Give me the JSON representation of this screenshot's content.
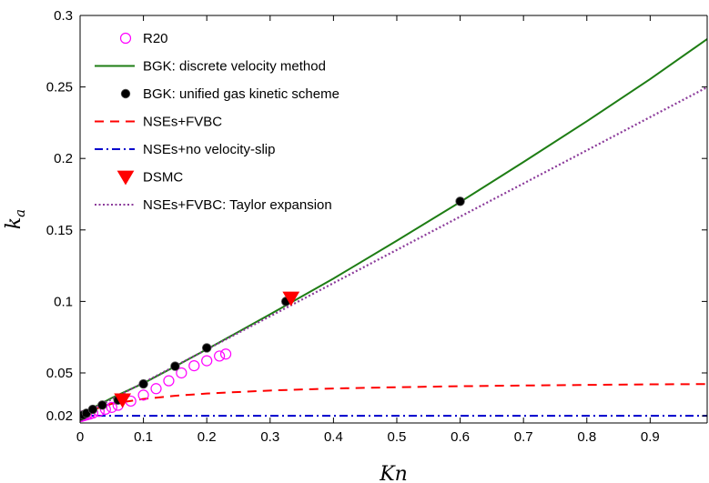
{
  "chart_data": {
    "type": "line",
    "title": "",
    "xlabel": "Kn",
    "ylabel": "k_a",
    "ylabel_main": "k",
    "ylabel_sub": "a",
    "xlim": [
      0,
      0.99
    ],
    "ylim": [
      0.015,
      0.3
    ],
    "xticks": [
      "0",
      "0.1",
      "0.2",
      "0.3",
      "0.4",
      "0.5",
      "0.6",
      "0.7",
      "0.8",
      "0.9"
    ],
    "xtick_values": [
      0,
      0.1,
      0.2,
      0.3,
      0.4,
      0.5,
      0.6,
      0.7,
      0.8,
      0.9
    ],
    "yticks": [
      "0.02",
      "0.05",
      "0.1",
      "0.15",
      "0.2",
      "0.25",
      "0.3"
    ],
    "ytick_values": [
      0.02,
      0.05,
      0.1,
      0.15,
      0.2,
      0.25,
      0.3
    ],
    "grid": false,
    "legend_position": "top-left",
    "series": [
      {
        "name": "R20",
        "style": "circle-open",
        "color": "#ff00ff",
        "x": [
          0.001,
          0.003,
          0.006,
          0.01,
          0.015,
          0.02,
          0.03,
          0.04,
          0.05,
          0.06,
          0.08,
          0.1,
          0.12,
          0.14,
          0.16,
          0.18,
          0.2,
          0.22,
          0.23
        ],
        "y": [
          0.0195,
          0.0198,
          0.0201,
          0.0206,
          0.0212,
          0.0219,
          0.0232,
          0.0246,
          0.0259,
          0.0274,
          0.0303,
          0.0345,
          0.039,
          0.0445,
          0.05,
          0.055,
          0.0585,
          0.0618,
          0.0632
        ]
      },
      {
        "name": "BGK: discrete velocity method",
        "style": "solid",
        "color": "#1e7d14",
        "x": [
          0,
          0.02,
          0.05,
          0.1,
          0.15,
          0.2,
          0.3,
          0.33,
          0.4,
          0.5,
          0.6,
          0.7,
          0.8,
          0.9,
          0.99
        ],
        "y": [
          0.02,
          0.0255,
          0.0325,
          0.0428,
          0.0545,
          0.0665,
          0.091,
          0.0985,
          0.116,
          0.1425,
          0.1695,
          0.1975,
          0.226,
          0.2555,
          0.2835
        ]
      },
      {
        "name": "BGK: unified gas kinetic scheme",
        "style": "dot-filled",
        "color": "#000000",
        "x": [
          0.001,
          0.005,
          0.01,
          0.02,
          0.035,
          0.06,
          0.1,
          0.15,
          0.2,
          0.325,
          0.6
        ],
        "y": [
          0.0198,
          0.0206,
          0.0218,
          0.0245,
          0.0275,
          0.031,
          0.0423,
          0.0547,
          0.0675,
          0.1,
          0.17
        ]
      },
      {
        "name": "NSEs+FVBC",
        "style": "dashed",
        "color": "#ff0000",
        "x": [
          0,
          0.02,
          0.05,
          0.1,
          0.15,
          0.2,
          0.3,
          0.4,
          0.5,
          0.6,
          0.7,
          0.8,
          0.9,
          0.99
        ],
        "y": [
          0.02,
          0.0242,
          0.0284,
          0.0318,
          0.034,
          0.0356,
          0.0377,
          0.0391,
          0.04,
          0.0407,
          0.0412,
          0.0416,
          0.042,
          0.0422
        ]
      },
      {
        "name": "NSEs+no velocity-slip",
        "style": "dashdot",
        "color": "#0000cc",
        "x": [
          0,
          0.99
        ],
        "y": [
          0.02,
          0.02
        ]
      },
      {
        "name": "DSMC",
        "style": "triangle-down",
        "color": "#ff0000",
        "x": [
          0.067,
          0.333
        ],
        "y": [
          0.0313,
          0.1025
        ]
      },
      {
        "name": "NSEs+FVBC: Taylor expansion",
        "style": "dotted",
        "color": "#8b3a9a",
        "x": [
          0,
          0.99
        ],
        "y": [
          0.02,
          0.2498
        ]
      }
    ]
  }
}
